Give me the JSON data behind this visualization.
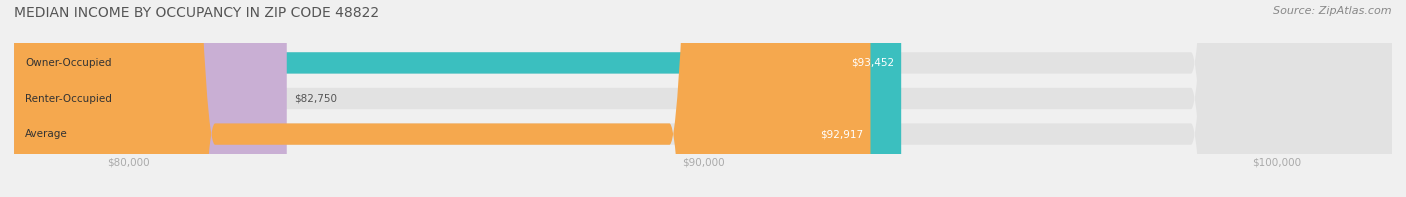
{
  "title": "MEDIAN INCOME BY OCCUPANCY IN ZIP CODE 48822",
  "source": "Source: ZipAtlas.com",
  "categories": [
    "Owner-Occupied",
    "Renter-Occupied",
    "Average"
  ],
  "values": [
    93452,
    82750,
    92917
  ],
  "labels": [
    "$93,452",
    "$82,750",
    "$92,917"
  ],
  "bar_colors": [
    "#3bbfbf",
    "#c9afd4",
    "#f5a84e"
  ],
  "background_color": "#f0f0f0",
  "bar_bg_color": "#e2e2e2",
  "xlim_min": 78000,
  "xlim_max": 102000,
  "xticks": [
    80000,
    90000,
    100000
  ],
  "xtick_labels": [
    "$80,000",
    "$90,000",
    "$100,000"
  ],
  "title_fontsize": 10,
  "source_fontsize": 8,
  "label_fontsize": 7.5,
  "tick_fontsize": 7.5,
  "category_fontsize": 7.5
}
